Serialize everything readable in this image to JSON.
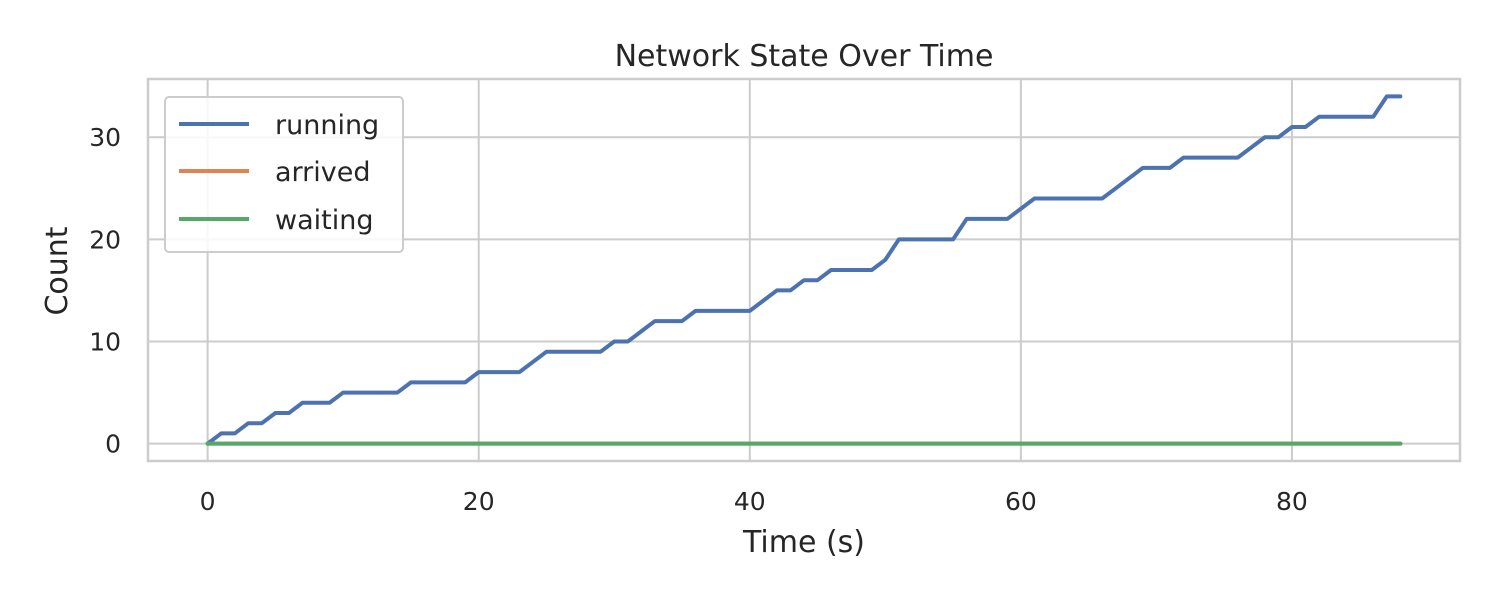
{
  "chart_data": {
    "type": "line",
    "title": "Network State Over Time",
    "xlabel": "Time (s)",
    "ylabel": "Count",
    "xlim": [
      -4.4,
      92.4
    ],
    "ylim": [
      -1.7,
      35.7
    ],
    "xticks": [
      0,
      20,
      40,
      60,
      80
    ],
    "yticks": [
      0,
      10,
      20,
      30
    ],
    "xtick_labels": [
      "0",
      "20",
      "40",
      "60",
      "80"
    ],
    "ytick_labels": [
      "0",
      "10",
      "20",
      "30"
    ],
    "grid": true,
    "legend_position": "top-left",
    "x": [
      0,
      1,
      2,
      3,
      4,
      5,
      6,
      7,
      8,
      9,
      10,
      11,
      12,
      13,
      14,
      15,
      16,
      17,
      18,
      19,
      20,
      21,
      22,
      23,
      24,
      25,
      26,
      27,
      28,
      29,
      30,
      31,
      32,
      33,
      34,
      35,
      36,
      37,
      38,
      39,
      40,
      41,
      42,
      43,
      44,
      45,
      46,
      47,
      48,
      49,
      50,
      51,
      52,
      53,
      54,
      55,
      56,
      57,
      58,
      59,
      60,
      61,
      62,
      63,
      64,
      65,
      66,
      67,
      68,
      69,
      70,
      71,
      72,
      73,
      74,
      75,
      76,
      77,
      78,
      79,
      80,
      81,
      82,
      83,
      84,
      85,
      86,
      87,
      88
    ],
    "series": [
      {
        "name": "running",
        "color": "#4c72b0",
        "values": [
          0,
          1,
          1,
          2,
          2,
          3,
          3,
          4,
          4,
          4,
          5,
          5,
          5,
          5,
          5,
          6,
          6,
          6,
          6,
          6,
          7,
          7,
          7,
          7,
          8,
          9,
          9,
          9,
          9,
          9,
          10,
          10,
          11,
          12,
          12,
          12,
          13,
          13,
          13,
          13,
          13,
          14,
          15,
          15,
          16,
          16,
          17,
          17,
          17,
          17,
          18,
          20,
          20,
          20,
          20,
          20,
          22,
          22,
          22,
          22,
          23,
          24,
          24,
          24,
          24,
          24,
          24,
          25,
          26,
          27,
          27,
          27,
          28,
          28,
          28,
          28,
          28,
          29,
          30,
          30,
          31,
          31,
          32,
          32,
          32,
          32,
          32,
          34,
          34
        ]
      },
      {
        "name": "arrived",
        "color": "#dd8452",
        "values": [
          0,
          0,
          0,
          0,
          0,
          0,
          0,
          0,
          0,
          0,
          0,
          0,
          0,
          0,
          0,
          0,
          0,
          0,
          0,
          0,
          0,
          0,
          0,
          0,
          0,
          0,
          0,
          0,
          0,
          0,
          0,
          0,
          0,
          0,
          0,
          0,
          0,
          0,
          0,
          0,
          0,
          0,
          0,
          0,
          0,
          0,
          0,
          0,
          0,
          0,
          0,
          0,
          0,
          0,
          0,
          0,
          0,
          0,
          0,
          0,
          0,
          0,
          0,
          0,
          0,
          0,
          0,
          0,
          0,
          0,
          0,
          0,
          0,
          0,
          0,
          0,
          0,
          0,
          0,
          0,
          0,
          0,
          0,
          0,
          0,
          0,
          0,
          0,
          0
        ]
      },
      {
        "name": "waiting",
        "color": "#55a868",
        "values": [
          0,
          0,
          0,
          0,
          0,
          0,
          0,
          0,
          0,
          0,
          0,
          0,
          0,
          0,
          0,
          0,
          0,
          0,
          0,
          0,
          0,
          0,
          0,
          0,
          0,
          0,
          0,
          0,
          0,
          0,
          0,
          0,
          0,
          0,
          0,
          0,
          0,
          0,
          0,
          0,
          0,
          0,
          0,
          0,
          0,
          0,
          0,
          0,
          0,
          0,
          0,
          0,
          0,
          0,
          0,
          0,
          0,
          0,
          0,
          0,
          0,
          0,
          0,
          0,
          0,
          0,
          0,
          0,
          0,
          0,
          0,
          0,
          0,
          0,
          0,
          0,
          0,
          0,
          0,
          0,
          0,
          0,
          0,
          0,
          0,
          0,
          0,
          0,
          0
        ]
      }
    ]
  }
}
